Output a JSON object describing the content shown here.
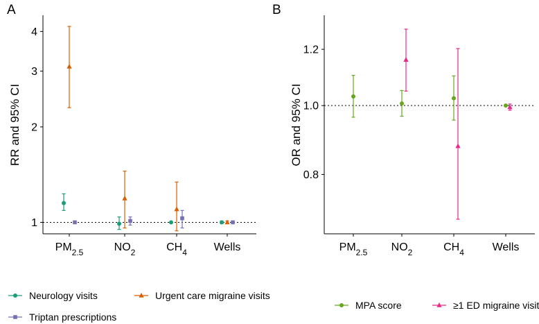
{
  "chart_data": [
    {
      "panel": "A",
      "type": "scatter",
      "subtype": "point-range",
      "ylabel": "RR and 95% CI",
      "yscale": "log",
      "ylim": [
        0.92,
        4.5
      ],
      "y_ticks": [
        "1",
        "2",
        "3",
        "4"
      ],
      "y_tick_values": [
        1,
        2,
        3,
        4
      ],
      "categories": [
        {
          "base": "PM",
          "sub": "2.5"
        },
        {
          "base": "NO",
          "sub": "2"
        },
        {
          "base": "CH",
          "sub": "4"
        },
        {
          "base": "Wells",
          "sub": ""
        }
      ],
      "reference_line": 1,
      "series": [
        {
          "name": "Neurology visits",
          "color": "#1b9e77",
          "marker": "circle",
          "values": [
            1.15,
            0.99,
            1.0,
            1.0
          ],
          "lower": [
            1.09,
            0.95,
            0.995,
            0.99
          ],
          "upper": [
            1.23,
            1.04,
            1.005,
            1.01
          ]
        },
        {
          "name": "Urgent care migraine visits",
          "color": "#d95f02",
          "marker": "triangle",
          "values": [
            3.1,
            1.19,
            1.1,
            1.0
          ],
          "lower": [
            2.3,
            0.96,
            0.94,
            0.99
          ],
          "upper": [
            4.15,
            1.45,
            1.34,
            1.01
          ]
        },
        {
          "name": "Triptan prescriptions",
          "color": "#7570b3",
          "marker": "square",
          "values": [
            1.0,
            1.01,
            1.03,
            1.0
          ],
          "lower": [
            0.995,
            0.98,
            0.96,
            0.99
          ],
          "upper": [
            1.005,
            1.04,
            1.09,
            1.01
          ]
        }
      ]
    },
    {
      "panel": "B",
      "type": "scatter",
      "subtype": "point-range",
      "ylabel": "OR and 95% CI",
      "yscale": "log",
      "ylim": [
        0.66,
        1.34
      ],
      "y_ticks": [
        "0.8",
        "1.0",
        "1.2"
      ],
      "y_tick_values": [
        0.8,
        1.0,
        1.2
      ],
      "categories": [
        {
          "base": "PM",
          "sub": "2.5"
        },
        {
          "base": "NO",
          "sub": "2"
        },
        {
          "base": "CH",
          "sub": "4"
        },
        {
          "base": "Wells",
          "sub": ""
        }
      ],
      "reference_line": 1,
      "series": [
        {
          "name": "MPA score",
          "color": "#66a61e",
          "marker": "circle",
          "values": [
            1.03,
            1.007,
            1.024,
            1.0
          ],
          "lower": [
            0.963,
            0.966,
            0.954,
            0.998
          ],
          "upper": [
            1.103,
            1.05,
            1.101,
            1.002
          ]
        },
        {
          "name": "≥1 ED migraine visit",
          "color": "#e7298a",
          "marker": "triangle",
          "values": [
            null,
            1.16,
            0.877,
            0.995
          ],
          "lower": [
            null,
            1.048,
            0.692,
            0.985
          ],
          "upper": [
            null,
            1.281,
            1.203,
            1.005
          ]
        }
      ]
    }
  ]
}
